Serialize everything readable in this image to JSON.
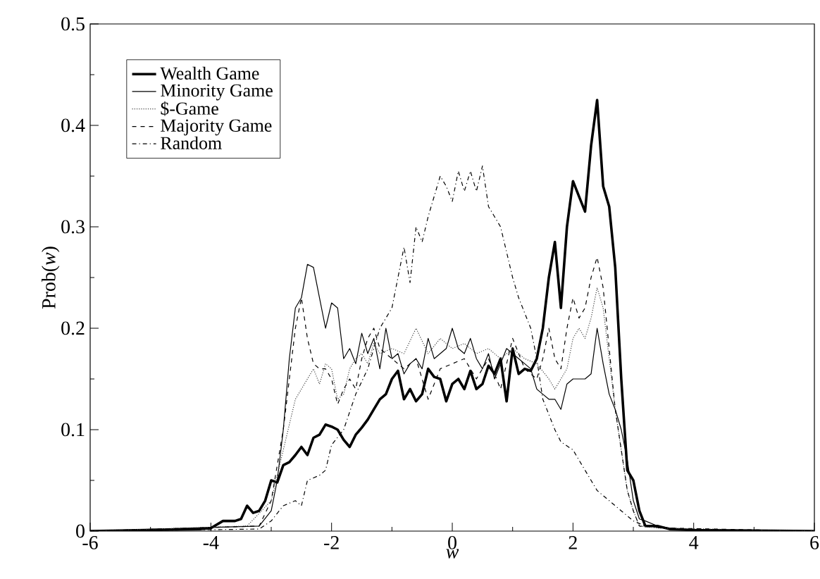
{
  "chart_data": {
    "type": "line",
    "xlabel": "w",
    "ylabel": "Prob(*w*)",
    "xlim": [
      -6,
      6
    ],
    "ylim": [
      0,
      0.5
    ],
    "xticks": [
      -6,
      -4,
      -2,
      0,
      2,
      4,
      6
    ],
    "yticks": [
      0,
      0.1,
      0.2,
      0.3,
      0.4,
      0.5
    ],
    "grid": false,
    "legend": "top left",
    "marker": "none",
    "series": [
      {
        "name": "Wealth Game",
        "color": "#000000",
        "line_style": "solid",
        "x": [
          -6,
          -4.2,
          -4,
          -3.8,
          -3.6,
          -3.5,
          -3.4,
          -3.3,
          -3.2,
          -3.1,
          -3.0,
          -2.9,
          -2.8,
          -2.7,
          -2.6,
          -2.5,
          -2.4,
          -2.3,
          -2.2,
          -2.1,
          -2.0,
          -1.9,
          -1.8,
          -1.7,
          -1.6,
          -1.5,
          -1.4,
          -1.3,
          -1.2,
          -1.1,
          -1.0,
          -0.9,
          -0.8,
          -0.7,
          -0.6,
          -0.5,
          -0.4,
          -0.3,
          -0.2,
          -0.1,
          0,
          0.1,
          0.2,
          0.3,
          0.4,
          0.5,
          0.6,
          0.7,
          0.8,
          0.9,
          1.0,
          1.1,
          1.2,
          1.3,
          1.4,
          1.5,
          1.6,
          1.7,
          1.8,
          1.9,
          2.0,
          2.1,
          2.2,
          2.3,
          2.4,
          2.5,
          2.6,
          2.7,
          2.8,
          2.9,
          3.0,
          3.1,
          3.2,
          3.4,
          3.6,
          4,
          6
        ],
        "values": [
          0,
          0.002,
          0.003,
          0.01,
          0.01,
          0.012,
          0.025,
          0.018,
          0.02,
          0.03,
          0.05,
          0.048,
          0.065,
          0.068,
          0.075,
          0.083,
          0.075,
          0.092,
          0.095,
          0.105,
          0.103,
          0.1,
          0.09,
          0.083,
          0.095,
          0.102,
          0.11,
          0.12,
          0.13,
          0.135,
          0.15,
          0.158,
          0.13,
          0.14,
          0.128,
          0.135,
          0.16,
          0.152,
          0.15,
          0.128,
          0.145,
          0.15,
          0.14,
          0.158,
          0.14,
          0.145,
          0.163,
          0.155,
          0.17,
          0.128,
          0.18,
          0.155,
          0.16,
          0.158,
          0.17,
          0.2,
          0.25,
          0.285,
          0.22,
          0.3,
          0.345,
          0.33,
          0.315,
          0.38,
          0.425,
          0.34,
          0.32,
          0.26,
          0.15,
          0.06,
          0.05,
          0.02,
          0.005,
          0.005,
          0.002,
          0.001,
          0
        ]
      },
      {
        "name": "Minority Game",
        "color": "#000000",
        "line_style": "solid",
        "x": [
          -6,
          -3.2,
          -3.0,
          -2.9,
          -2.8,
          -2.7,
          -2.6,
          -2.5,
          -2.4,
          -2.3,
          -2.2,
          -2.1,
          -2.0,
          -1.9,
          -1.8,
          -1.7,
          -1.6,
          -1.5,
          -1.4,
          -1.3,
          -1.2,
          -1.1,
          -1.0,
          -0.9,
          -0.8,
          -0.7,
          -0.6,
          -0.5,
          -0.4,
          -0.3,
          -0.2,
          -0.1,
          0,
          0.1,
          0.2,
          0.3,
          0.4,
          0.5,
          0.6,
          0.7,
          0.8,
          0.9,
          1.0,
          1.1,
          1.2,
          1.3,
          1.4,
          1.5,
          1.6,
          1.7,
          1.8,
          1.9,
          2.0,
          2.1,
          2.2,
          2.3,
          2.4,
          2.5,
          2.6,
          2.7,
          2.8,
          2.9,
          3.0,
          3.1,
          3.2,
          3.4,
          3.6,
          4,
          6
        ],
        "values": [
          0,
          0.005,
          0.02,
          0.05,
          0.1,
          0.17,
          0.22,
          0.23,
          0.263,
          0.26,
          0.23,
          0.2,
          0.225,
          0.22,
          0.17,
          0.18,
          0.165,
          0.195,
          0.175,
          0.19,
          0.16,
          0.2,
          0.17,
          0.175,
          0.155,
          0.165,
          0.17,
          0.16,
          0.19,
          0.17,
          0.175,
          0.18,
          0.2,
          0.18,
          0.175,
          0.19,
          0.17,
          0.16,
          0.175,
          0.15,
          0.165,
          0.18,
          0.175,
          0.17,
          0.165,
          0.16,
          0.14,
          0.135,
          0.13,
          0.13,
          0.12,
          0.145,
          0.15,
          0.15,
          0.15,
          0.155,
          0.2,
          0.165,
          0.135,
          0.12,
          0.1,
          0.07,
          0.03,
          0.012,
          0.01,
          0.005,
          0.003,
          0,
          0
        ]
      },
      {
        "name": "$-Game",
        "color": "#444444",
        "line_style": "dotted",
        "x": [
          -6,
          -3.4,
          -3.0,
          -2.8,
          -2.6,
          -2.4,
          -2.3,
          -2.2,
          -2.1,
          -2.0,
          -1.9,
          -1.8,
          -1.7,
          -1.6,
          -1.5,
          -1.4,
          -1.3,
          -1.2,
          -1.0,
          -0.8,
          -0.6,
          -0.4,
          -0.2,
          0,
          0.2,
          0.4,
          0.6,
          0.8,
          1.0,
          1.2,
          1.4,
          1.6,
          1.7,
          1.8,
          1.9,
          2.0,
          2.1,
          2.2,
          2.3,
          2.4,
          2.5,
          2.6,
          2.7,
          2.8,
          2.9,
          3.0,
          3.1,
          3.4,
          6
        ],
        "values": [
          0,
          0.005,
          0.03,
          0.08,
          0.13,
          0.15,
          0.16,
          0.145,
          0.165,
          0.16,
          0.13,
          0.135,
          0.16,
          0.17,
          0.175,
          0.165,
          0.185,
          0.175,
          0.18,
          0.175,
          0.2,
          0.175,
          0.19,
          0.18,
          0.185,
          0.175,
          0.18,
          0.17,
          0.18,
          0.17,
          0.165,
          0.15,
          0.14,
          0.15,
          0.16,
          0.19,
          0.2,
          0.19,
          0.21,
          0.24,
          0.22,
          0.17,
          0.12,
          0.08,
          0.04,
          0.02,
          0.005,
          0.003,
          0
        ]
      },
      {
        "name": "Majority Game",
        "color": "#000000",
        "line_style": "dashed",
        "x": [
          -6,
          -3.2,
          -3.0,
          -2.8,
          -2.7,
          -2.6,
          -2.5,
          -2.4,
          -2.3,
          -2.2,
          -2.1,
          -2.0,
          -1.9,
          -1.8,
          -1.7,
          -1.6,
          -1.5,
          -1.4,
          -1.3,
          -1.2,
          -1.0,
          -0.8,
          -0.6,
          -0.4,
          -0.2,
          0,
          0.2,
          0.4,
          0.6,
          0.8,
          1.0,
          1.2,
          1.4,
          1.5,
          1.6,
          1.7,
          1.8,
          1.9,
          2.0,
          2.1,
          2.2,
          2.3,
          2.4,
          2.5,
          2.6,
          2.7,
          2.8,
          2.9,
          3.0,
          3.1,
          3.6,
          6
        ],
        "values": [
          0,
          0.005,
          0.03,
          0.1,
          0.15,
          0.2,
          0.23,
          0.19,
          0.165,
          0.16,
          0.16,
          0.15,
          0.125,
          0.14,
          0.15,
          0.14,
          0.17,
          0.19,
          0.2,
          0.18,
          0.17,
          0.16,
          0.17,
          0.13,
          0.16,
          0.165,
          0.17,
          0.15,
          0.17,
          0.14,
          0.19,
          0.16,
          0.15,
          0.17,
          0.2,
          0.17,
          0.16,
          0.2,
          0.23,
          0.21,
          0.22,
          0.25,
          0.27,
          0.24,
          0.18,
          0.12,
          0.08,
          0.04,
          0.02,
          0.005,
          0.003,
          0
        ]
      },
      {
        "name": "Random",
        "color": "#000000",
        "line_style": "dashdot",
        "x": [
          -6,
          -3.2,
          -3.0,
          -2.8,
          -2.6,
          -2.5,
          -2.4,
          -2.2,
          -2.1,
          -2.0,
          -1.8,
          -1.6,
          -1.4,
          -1.2,
          -1.0,
          -0.8,
          -0.7,
          -0.6,
          -0.5,
          -0.4,
          -0.2,
          -0.1,
          0,
          0.1,
          0.2,
          0.3,
          0.4,
          0.5,
          0.6,
          0.8,
          1.0,
          1.1,
          1.2,
          1.3,
          1.4,
          1.5,
          1.6,
          1.7,
          1.8,
          2.0,
          2.2,
          2.4,
          2.6,
          2.8,
          3.0,
          3.2,
          3.6,
          6
        ],
        "values": [
          0,
          0.002,
          0.01,
          0.025,
          0.03,
          0.025,
          0.05,
          0.055,
          0.06,
          0.085,
          0.1,
          0.135,
          0.16,
          0.2,
          0.22,
          0.28,
          0.245,
          0.3,
          0.285,
          0.31,
          0.35,
          0.34,
          0.325,
          0.355,
          0.335,
          0.355,
          0.335,
          0.36,
          0.32,
          0.3,
          0.25,
          0.23,
          0.215,
          0.2,
          0.17,
          0.13,
          0.115,
          0.1,
          0.088,
          0.08,
          0.06,
          0.04,
          0.03,
          0.02,
          0.01,
          0.005,
          0.002,
          0
        ]
      }
    ]
  }
}
